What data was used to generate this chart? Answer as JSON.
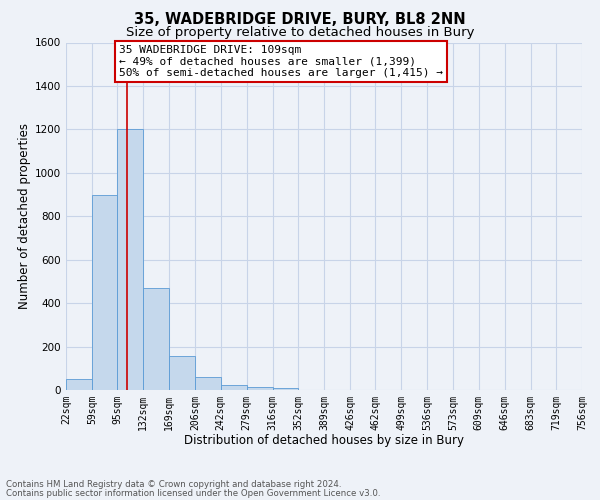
{
  "title": "35, WADEBRIDGE DRIVE, BURY, BL8 2NN",
  "subtitle": "Size of property relative to detached houses in Bury",
  "xlabel": "Distribution of detached houses by size in Bury",
  "ylabel": "Number of detached properties",
  "footer_line1": "Contains HM Land Registry data © Crown copyright and database right 2024.",
  "footer_line2": "Contains public sector information licensed under the Open Government Licence v3.0.",
  "bar_values": [
    50,
    900,
    1200,
    470,
    155,
    60,
    25,
    15,
    10,
    0,
    0,
    0,
    0,
    0,
    0,
    0,
    0,
    0,
    0,
    0
  ],
  "bin_edges": [
    22,
    59,
    95,
    132,
    169,
    206,
    242,
    279,
    316,
    352,
    389,
    426,
    462,
    499,
    536,
    573,
    609,
    646,
    683,
    719,
    756
  ],
  "tick_labels": [
    "22sqm",
    "59sqm",
    "95sqm",
    "132sqm",
    "169sqm",
    "206sqm",
    "242sqm",
    "279sqm",
    "316sqm",
    "352sqm",
    "389sqm",
    "426sqm",
    "462sqm",
    "499sqm",
    "536sqm",
    "573sqm",
    "609sqm",
    "646sqm",
    "683sqm",
    "719sqm",
    "756sqm"
  ],
  "bar_color": "#c5d8ec",
  "bar_edge_color": "#5b9bd5",
  "red_line_x": 109,
  "annotation_text": "35 WADEBRIDGE DRIVE: 109sqm\n← 49% of detached houses are smaller (1,399)\n50% of semi-detached houses are larger (1,415) →",
  "annotation_box_color": "#ffffff",
  "annotation_border_color": "#cc0000",
  "red_line_color": "#cc0000",
  "ylim": [
    0,
    1600
  ],
  "xlim": [
    22,
    756
  ],
  "background_color": "#eef2f8",
  "grid_color": "#c8d4e8",
  "title_fontsize": 10.5,
  "subtitle_fontsize": 9.5,
  "axis_label_fontsize": 8.5,
  "tick_fontsize": 7,
  "annotation_fontsize": 8,
  "ytick_values": [
    0,
    200,
    400,
    600,
    800,
    1000,
    1200,
    1400,
    1600
  ]
}
